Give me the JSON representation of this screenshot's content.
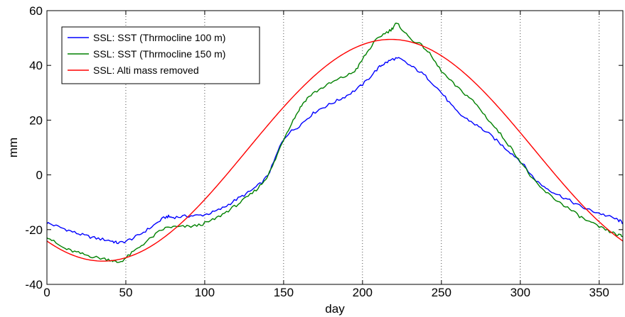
{
  "chart_data": {
    "type": "line",
    "xlabel": "day",
    "ylabel": "mm",
    "xlim": [
      0,
      365
    ],
    "ylim": [
      -40,
      60
    ],
    "x_ticks": [
      0,
      50,
      100,
      150,
      200,
      250,
      300,
      350
    ],
    "y_ticks": [
      -40,
      -20,
      0,
      20,
      40,
      60
    ],
    "grid": "vertical dotted",
    "legend_position": "top-left",
    "series": [
      {
        "name": "SSL: SST (Thrmocline 100 m)",
        "color": "#0000ff",
        "points": [
          [
            0,
            -17.5
          ],
          [
            10,
            -19.5
          ],
          [
            20,
            -21.5
          ],
          [
            30,
            -23
          ],
          [
            40,
            -24
          ],
          [
            46,
            -24.8
          ],
          [
            55,
            -23
          ],
          [
            65,
            -19.5
          ],
          [
            75,
            -15.5
          ],
          [
            80,
            -15.5
          ],
          [
            90,
            -15
          ],
          [
            100,
            -14.5
          ],
          [
            110,
            -12.5
          ],
          [
            120,
            -9
          ],
          [
            130,
            -5.5
          ],
          [
            140,
            0
          ],
          [
            150,
            13
          ],
          [
            160,
            18
          ],
          [
            170,
            23
          ],
          [
            180,
            26
          ],
          [
            190,
            29
          ],
          [
            200,
            33
          ],
          [
            210,
            39
          ],
          [
            215,
            41
          ],
          [
            222,
            42.5
          ],
          [
            230,
            40
          ],
          [
            240,
            36
          ],
          [
            250,
            30
          ],
          [
            260,
            23
          ],
          [
            270,
            19
          ],
          [
            280,
            15
          ],
          [
            290,
            10
          ],
          [
            300,
            5
          ],
          [
            310,
            -2
          ],
          [
            320,
            -6
          ],
          [
            330,
            -9
          ],
          [
            340,
            -12
          ],
          [
            350,
            -14
          ],
          [
            360,
            -16
          ],
          [
            365,
            -17.5
          ]
        ]
      },
      {
        "name": "SSL: SST (Thrmocline 150 m)",
        "color": "#008000",
        "points": [
          [
            0,
            -22.5
          ],
          [
            10,
            -26.5
          ],
          [
            20,
            -28.5
          ],
          [
            30,
            -30
          ],
          [
            40,
            -31
          ],
          [
            46,
            -31.8
          ],
          [
            55,
            -28
          ],
          [
            65,
            -23.5
          ],
          [
            75,
            -19.5
          ],
          [
            85,
            -19
          ],
          [
            95,
            -18.5
          ],
          [
            105,
            -16.5
          ],
          [
            115,
            -13
          ],
          [
            125,
            -9
          ],
          [
            135,
            -4
          ],
          [
            142,
            2
          ],
          [
            150,
            13
          ],
          [
            158,
            22
          ],
          [
            165,
            28
          ],
          [
            175,
            32
          ],
          [
            185,
            35
          ],
          [
            195,
            38
          ],
          [
            202,
            44
          ],
          [
            210,
            50
          ],
          [
            218,
            53
          ],
          [
            222,
            55
          ],
          [
            230,
            50
          ],
          [
            240,
            46
          ],
          [
            250,
            38
          ],
          [
            260,
            32
          ],
          [
            270,
            27
          ],
          [
            280,
            20
          ],
          [
            290,
            13
          ],
          [
            300,
            5
          ],
          [
            310,
            -3
          ],
          [
            320,
            -8
          ],
          [
            330,
            -12
          ],
          [
            340,
            -16
          ],
          [
            350,
            -19
          ],
          [
            360,
            -21.5
          ],
          [
            365,
            -22.5
          ]
        ]
      },
      {
        "name": "SSL: Alti mass removed",
        "color": "#ff0000",
        "curve": {
          "mean": 9,
          "amplitude": 40.5,
          "phase_day": 218,
          "period": 365
        }
      }
    ]
  }
}
